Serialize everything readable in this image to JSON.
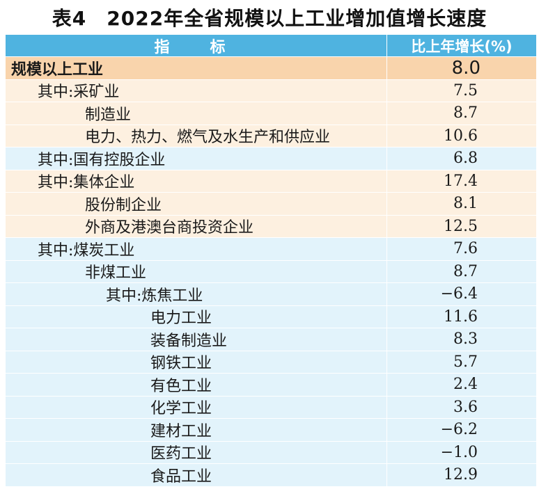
{
  "title": "表4　2022年全省规模以上工业增加值增长速度",
  "table": {
    "header": {
      "indicator": "指　标",
      "growth": "比上年增长(%)"
    },
    "total": {
      "name": "规模以上工业",
      "value": "8.0"
    },
    "rows": [
      {
        "name": "其中:采矿业",
        "value": "7.5"
      },
      {
        "name": "制造业",
        "value": "8.7"
      },
      {
        "name": "电力、热力、燃气及水生产和供应业",
        "value": "10.6"
      },
      {
        "name": "其中:国有控股企业",
        "value": "6.8"
      },
      {
        "name": "其中:集体企业",
        "value": "17.4"
      },
      {
        "name": "股份制企业",
        "value": "8.1"
      },
      {
        "name": "外商及港澳台商投资企业",
        "value": "12.5"
      },
      {
        "name": "其中:煤炭工业",
        "value": "7.6"
      },
      {
        "name": "非煤工业",
        "value": "8.7"
      },
      {
        "name": "其中:炼焦工业",
        "value": "−6.4"
      },
      {
        "name": "电力工业",
        "value": "11.6"
      },
      {
        "name": "装备制造业",
        "value": "8.3"
      },
      {
        "name": "钢铁工业",
        "value": "5.7"
      },
      {
        "name": "有色工业",
        "value": "2.4"
      },
      {
        "name": "化学工业",
        "value": "3.6"
      },
      {
        "name": "建材工业",
        "value": "−6.2"
      },
      {
        "name": "医药工业",
        "value": "−1.0"
      },
      {
        "name": "食品工业",
        "value": "12.9"
      }
    ]
  },
  "colors": {
    "header_bg": "#4fb3e0",
    "total_bg": "#f9d4ac",
    "orange_band": "#fdf0e0",
    "blue_band": "#e2f3fb"
  }
}
